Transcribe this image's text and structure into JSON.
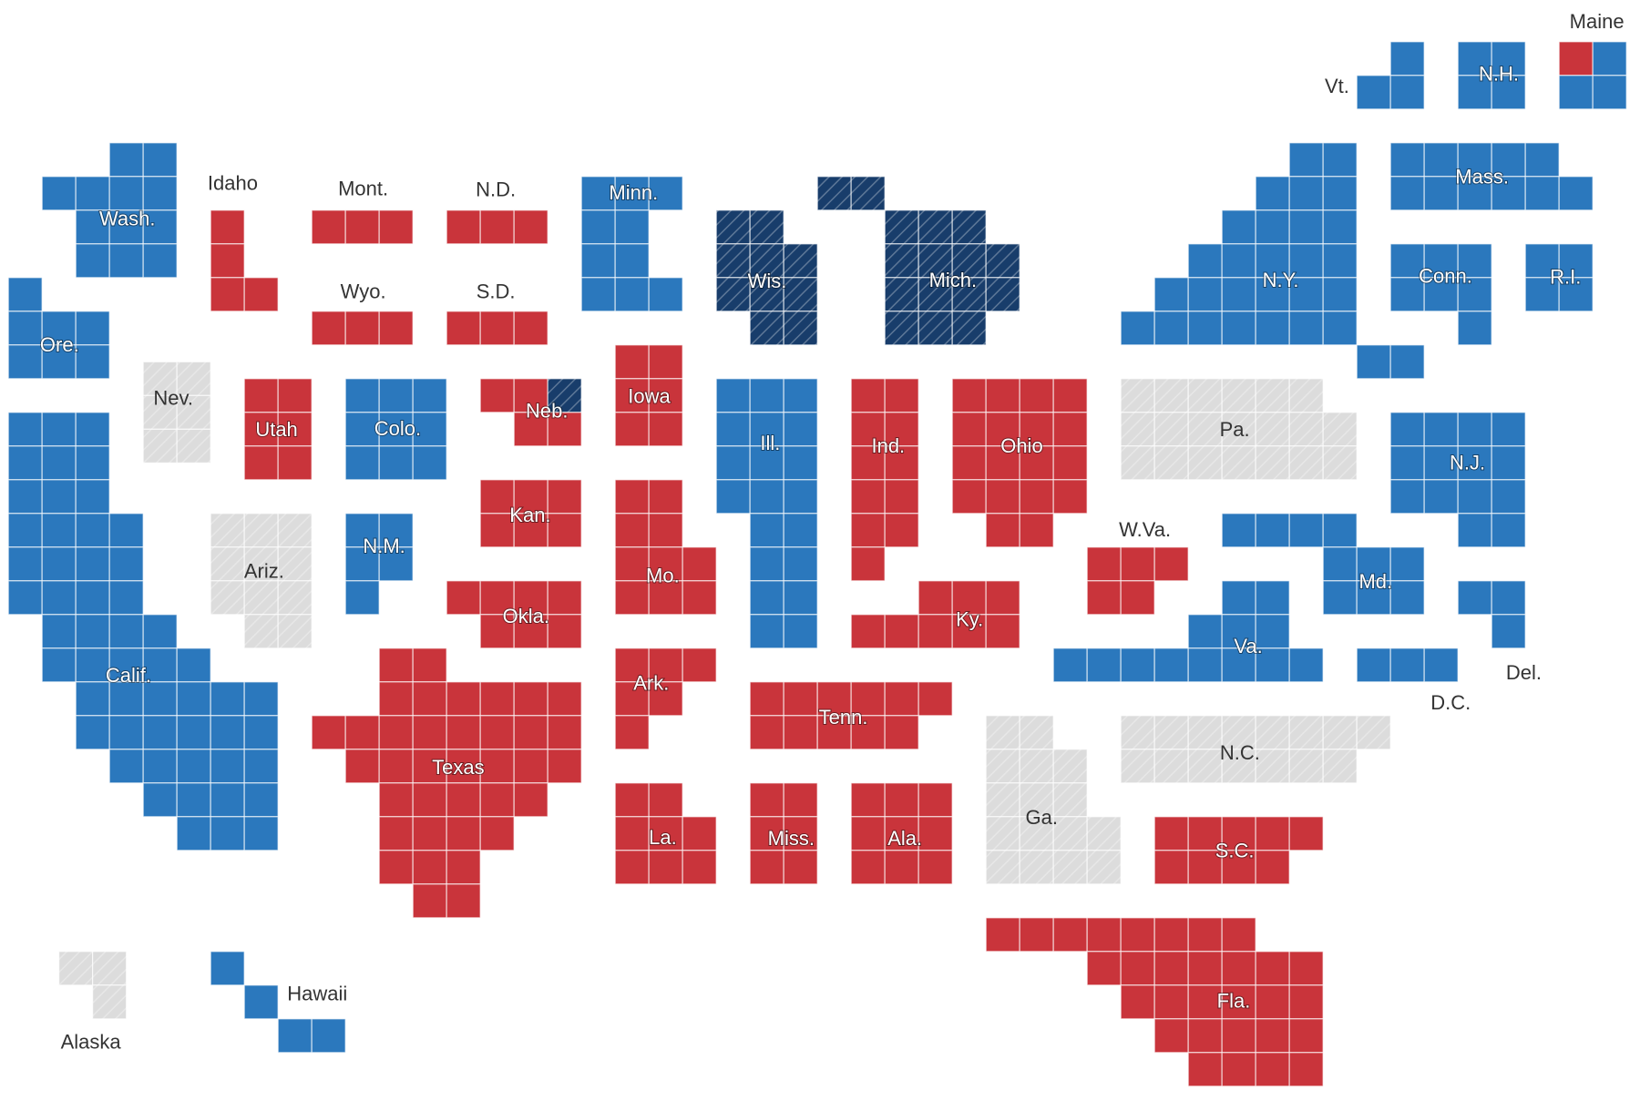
{
  "states": [
    {
      "label": "Maine",
      "color": "#2b78bd",
      "hatched": false,
      "district": {
        "color": "#c9343b",
        "hatched": false
      }
    },
    {
      "label": "Vt.",
      "color": "#2b78bd",
      "hatched": false
    },
    {
      "label": "N.H.",
      "color": "#2b78bd",
      "hatched": false
    },
    {
      "label": "Wash.",
      "color": "#2b78bd",
      "hatched": false
    },
    {
      "label": "Idaho",
      "color": "#c9343b",
      "hatched": false
    },
    {
      "label": "Mont.",
      "color": "#c9343b",
      "hatched": false
    },
    {
      "label": "N.D.",
      "color": "#c9343b",
      "hatched": false
    },
    {
      "label": "Minn.",
      "color": "#2b78bd",
      "hatched": false
    },
    {
      "label": "Mass.",
      "color": "#2b78bd",
      "hatched": false
    },
    {
      "label": "Wyo.",
      "color": "#c9343b",
      "hatched": false
    },
    {
      "label": "S.D.",
      "color": "#c9343b",
      "hatched": false
    },
    {
      "label": "Wis.",
      "color": "#183d6b",
      "hatched": true
    },
    {
      "label": "Mich.",
      "color": "#183d6b",
      "hatched": true
    },
    {
      "label": "N.Y.",
      "color": "#2b78bd",
      "hatched": false
    },
    {
      "label": "Conn.",
      "color": "#2b78bd",
      "hatched": false
    },
    {
      "label": "R.I.",
      "color": "#2b78bd",
      "hatched": false
    },
    {
      "label": "Ore.",
      "color": "#2b78bd",
      "hatched": false
    },
    {
      "label": "Nev.",
      "color": "#dcdcdc",
      "hatched": true
    },
    {
      "label": "Utah",
      "color": "#c9343b",
      "hatched": false
    },
    {
      "label": "Colo.",
      "color": "#2b78bd",
      "hatched": false
    },
    {
      "label": "Neb.",
      "color": "#c9343b",
      "hatched": false,
      "district": {
        "color": "#183d6b",
        "hatched": true
      }
    },
    {
      "label": "Iowa",
      "color": "#c9343b",
      "hatched": false
    },
    {
      "label": "Ill.",
      "color": "#2b78bd",
      "hatched": false
    },
    {
      "label": "Ind.",
      "color": "#c9343b",
      "hatched": false
    },
    {
      "label": "Ohio",
      "color": "#c9343b",
      "hatched": false
    },
    {
      "label": "Pa.",
      "color": "#dcdcdc",
      "hatched": true
    },
    {
      "label": "N.J.",
      "color": "#2b78bd",
      "hatched": false
    },
    {
      "label": "Kan.",
      "color": "#c9343b",
      "hatched": false
    },
    {
      "label": "W.Va.",
      "color": "#c9343b",
      "hatched": false
    },
    {
      "label": "N.M.",
      "color": "#2b78bd",
      "hatched": false
    },
    {
      "label": "Ariz.",
      "color": "#dcdcdc",
      "hatched": true
    },
    {
      "label": "Mo.",
      "color": "#c9343b",
      "hatched": false
    },
    {
      "label": "Md.",
      "color": "#2b78bd",
      "hatched": false
    },
    {
      "label": "Okla.",
      "color": "#c9343b",
      "hatched": false
    },
    {
      "label": "Ky.",
      "color": "#c9343b",
      "hatched": false
    },
    {
      "label": "Va.",
      "color": "#2b78bd",
      "hatched": false
    },
    {
      "label": "Del.",
      "color": "#2b78bd",
      "hatched": false
    },
    {
      "label": "Calif.",
      "color": "#2b78bd",
      "hatched": false
    },
    {
      "label": "Ark.",
      "color": "#c9343b",
      "hatched": false
    },
    {
      "label": "D.C.",
      "color": "#2b78bd",
      "hatched": false
    },
    {
      "label": "Tenn.",
      "color": "#c9343b",
      "hatched": false
    },
    {
      "label": "N.C.",
      "color": "#dcdcdc",
      "hatched": true
    },
    {
      "label": "Texas",
      "color": "#c9343b",
      "hatched": false
    },
    {
      "label": "Ga.",
      "color": "#dcdcdc",
      "hatched": true
    },
    {
      "label": "La.",
      "color": "#c9343b",
      "hatched": false
    },
    {
      "label": "Miss.",
      "color": "#c9343b",
      "hatched": false
    },
    {
      "label": "Ala.",
      "color": "#c9343b",
      "hatched": false
    },
    {
      "label": "S.C.",
      "color": "#c9343b",
      "hatched": false
    },
    {
      "label": "Fla.",
      "color": "#c9343b",
      "hatched": false
    },
    {
      "label": "Hawaii",
      "color": "#2b78bd",
      "hatched": false
    },
    {
      "label": "Alaska",
      "color": "#dcdcdc",
      "hatched": true
    }
  ]
}
